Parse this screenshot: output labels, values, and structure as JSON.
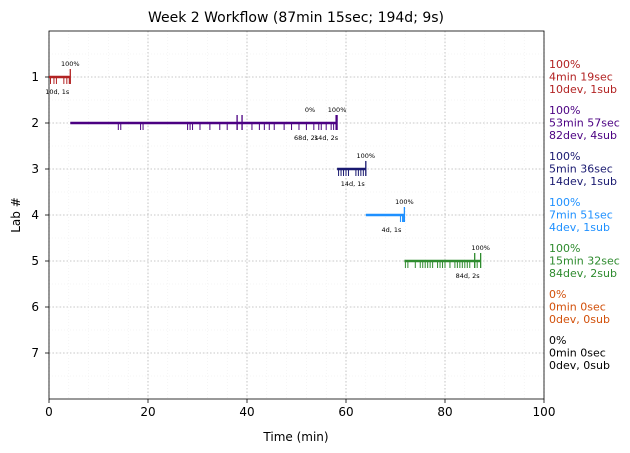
{
  "chart_data": {
    "type": "timeline",
    "title": "Week 2 Workflow (87min 15sec; 194d; 9s)",
    "xlabel": "Time (min)",
    "ylabel": "Lab #",
    "xlim": [
      0,
      100
    ],
    "ylim": [
      0,
      8
    ],
    "y_inverted": true,
    "x_ticks": [
      0,
      20,
      40,
      60,
      80,
      100
    ],
    "y_ticks": [
      1,
      2,
      3,
      4,
      5,
      6,
      7
    ],
    "grid": "dotted",
    "labs": [
      {
        "lab": 1,
        "color": "#b22222",
        "start": 0,
        "end": 4.3,
        "deploys": [
          0.3,
          1,
          1.5,
          3,
          3.6,
          4.1
        ],
        "submits": [
          4.3
        ],
        "pct_label": "100%",
        "stat_label": "10d, 1s",
        "summary": [
          "100%",
          "4min 19sec",
          "10dev, 1sub"
        ]
      },
      {
        "lab": 2,
        "color": "#4b0082",
        "start": 4.3,
        "end": 58.2,
        "deploys": [
          14,
          14.5,
          18.5,
          19,
          28,
          28.5,
          29,
          30.5,
          32.5,
          34.5,
          36,
          38,
          39,
          41,
          42.5,
          43.5,
          44.5,
          45.5,
          47.5,
          49,
          50.5,
          52,
          53.5,
          54.5,
          55,
          56,
          57,
          57.5
        ],
        "submits": [
          38,
          39,
          58,
          58.2
        ],
        "extra_pct_label": "0%",
        "pct_label": "100%",
        "stat_label": "68d, 2s",
        "stat_label_2": "14d, 2s",
        "summary": [
          "100%",
          "53min 57sec",
          "82dev, 4sub"
        ]
      },
      {
        "lab": 3,
        "color": "#191970",
        "start": 58.2,
        "end": 64.0,
        "deploys": [
          58.5,
          59,
          59.5,
          60,
          60.5,
          62,
          62.5,
          63,
          63.5
        ],
        "submits": [
          64.0
        ],
        "pct_label": "100%",
        "stat_label": "14d, 1s",
        "summary": [
          "100%",
          "5min 36sec",
          "14dev, 1sub"
        ]
      },
      {
        "lab": 4,
        "color": "#1e90ff",
        "start": 64.0,
        "end": 71.8,
        "deploys": [
          71,
          71.4,
          71.6
        ],
        "submits": [
          71.8
        ],
        "pct_label": "100%",
        "stat_label": "4d, 1s",
        "summary": [
          "100%",
          "7min 51sec",
          "4dev, 1sub"
        ]
      },
      {
        "lab": 5,
        "color": "#2e8b2e",
        "start": 71.8,
        "end": 87.2,
        "deploys": [
          72,
          72.5,
          74,
          75,
          75.5,
          76,
          76.5,
          77,
          77.5,
          78.5,
          79,
          79.5,
          80,
          81,
          82,
          82.5,
          83,
          83.5,
          84,
          84.5,
          85,
          86,
          86.5
        ],
        "submits": [
          86,
          87.2
        ],
        "pct_label": "100%",
        "stat_label": "84d, 2s",
        "summary": [
          "100%",
          "15min 32sec",
          "84dev, 2sub"
        ]
      },
      {
        "lab": 6,
        "color": "#d2500a",
        "summary": [
          "0%",
          "0min 0sec",
          "0dev, 0sub"
        ]
      },
      {
        "lab": 7,
        "color": "#000000",
        "summary": [
          "0%",
          "0min 0sec",
          "0dev, 0sub"
        ]
      }
    ]
  }
}
